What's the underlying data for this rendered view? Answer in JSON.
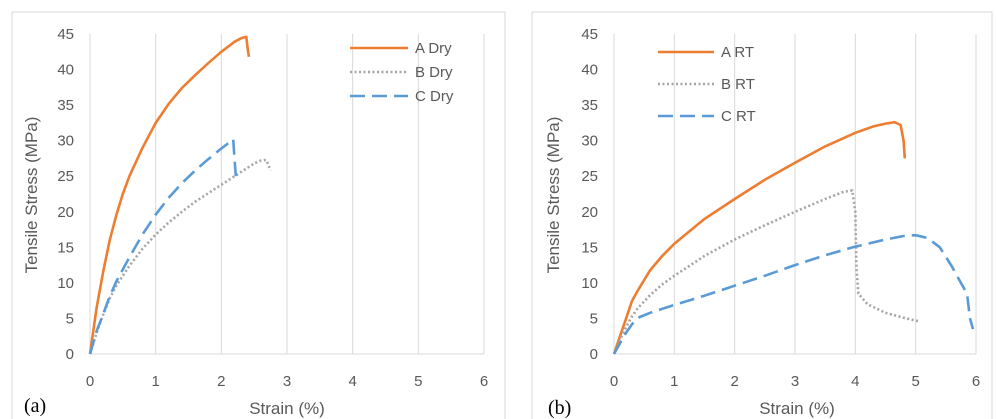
{
  "chart_data": [
    {
      "type": "line",
      "panel_label": "(a)",
      "xlabel": "Strain (%)",
      "ylabel": "Tensile Stress (MPa)",
      "xlim": [
        0,
        6
      ],
      "ylim": [
        0,
        45
      ],
      "xticks": [
        "0",
        "1",
        "2",
        "3",
        "4",
        "5",
        "6"
      ],
      "yticks": [
        "0",
        "5",
        "10",
        "15",
        "20",
        "25",
        "30",
        "35",
        "40",
        "45"
      ],
      "grid": "vertical",
      "legend_position": "top-right",
      "series": [
        {
          "name": "A Dry",
          "color": "#ED7D31",
          "dash": "solid",
          "x": [
            0,
            0.1,
            0.2,
            0.3,
            0.4,
            0.5,
            0.6,
            0.8,
            1.0,
            1.2,
            1.4,
            1.6,
            1.8,
            2.0,
            2.2,
            2.3,
            2.38,
            2.4,
            2.42
          ],
          "y": [
            0,
            6.5,
            11.5,
            16,
            19.5,
            22.5,
            25,
            29,
            32.5,
            35.2,
            37.4,
            39.2,
            40.9,
            42.5,
            43.9,
            44.4,
            44.6,
            43.0,
            41.8
          ]
        },
        {
          "name": "B Dry",
          "color": "#A5A5A5",
          "dash": "dotted",
          "x": [
            0,
            0.1,
            0.2,
            0.3,
            0.4,
            0.6,
            0.8,
            1.0,
            1.2,
            1.4,
            1.6,
            1.8,
            2.0,
            2.2,
            2.4,
            2.5,
            2.6,
            2.68,
            2.72,
            2.75
          ],
          "y": [
            0,
            3,
            5.5,
            7.8,
            9.6,
            12.4,
            14.8,
            16.8,
            18.5,
            20,
            21.4,
            22.6,
            23.8,
            25,
            26.2,
            26.8,
            27.2,
            27.3,
            26.5,
            25.8
          ]
        },
        {
          "name": "C Dry",
          "color": "#5B9BD5",
          "dash": "dashed",
          "x": [
            0,
            0.1,
            0.2,
            0.3,
            0.4,
            0.6,
            0.8,
            1.0,
            1.2,
            1.4,
            1.6,
            1.8,
            2.0,
            2.1,
            2.18,
            2.2,
            2.22
          ],
          "y": [
            0,
            3.2,
            5.6,
            8.1,
            10.2,
            13.6,
            16.8,
            19.6,
            22,
            24,
            25.8,
            27.4,
            28.9,
            29.6,
            30.2,
            27.5,
            25
          ]
        }
      ]
    },
    {
      "type": "line",
      "panel_label": "(b)",
      "xlabel": "Strain (%)",
      "ylabel": "Tensile Stress (MPa)",
      "xlim": [
        0,
        6
      ],
      "ylim": [
        0,
        45
      ],
      "xticks": [
        "0",
        "1",
        "2",
        "3",
        "4",
        "5",
        "6"
      ],
      "yticks": [
        "0",
        "5",
        "10",
        "15",
        "20",
        "25",
        "30",
        "35",
        "40",
        "45"
      ],
      "grid": "vertical",
      "legend_position": "top-left",
      "series": [
        {
          "name": "A RT",
          "color": "#ED7D31",
          "dash": "solid",
          "x": [
            0,
            0.1,
            0.2,
            0.3,
            0.4,
            0.6,
            0.8,
            1.0,
            1.5,
            2.0,
            2.5,
            3.0,
            3.5,
            4.0,
            4.3,
            4.5,
            4.65,
            4.75,
            4.8,
            4.82
          ],
          "y": [
            0,
            2.5,
            5,
            7.5,
            9,
            11.8,
            13.8,
            15.5,
            19,
            21.8,
            24.5,
            26.9,
            29.2,
            31.1,
            32,
            32.4,
            32.6,
            32.2,
            30,
            27.5
          ]
        },
        {
          "name": "B RT",
          "color": "#A5A5A5",
          "dash": "dotted",
          "x": [
            0,
            0.1,
            0.2,
            0.3,
            0.4,
            0.6,
            0.8,
            1.0,
            1.5,
            2.0,
            2.5,
            3.0,
            3.5,
            3.8,
            3.95,
            4.0,
            4.02,
            4.05,
            4.2,
            4.5,
            4.8,
            5.05
          ],
          "y": [
            0,
            2,
            3.8,
            5.3,
            6.5,
            8.3,
            9.8,
            11,
            13.8,
            16.1,
            18.1,
            20,
            21.8,
            22.8,
            23,
            20,
            12,
            8.5,
            7,
            5.8,
            5.1,
            4.6
          ]
        },
        {
          "name": "C RT",
          "color": "#5B9BD5",
          "dash": "dashed",
          "x": [
            0,
            0.1,
            0.2,
            0.3,
            0.4,
            0.6,
            1.0,
            1.5,
            2.0,
            2.5,
            3.0,
            3.5,
            4.0,
            4.5,
            4.8,
            5.0,
            5.2,
            5.4,
            5.6,
            5.75,
            5.85,
            5.9,
            5.95
          ],
          "y": [
            0,
            1.5,
            3,
            4.2,
            5.1,
            5.8,
            6.9,
            8.2,
            9.6,
            11,
            12.5,
            13.9,
            15.1,
            16.1,
            16.6,
            16.7,
            16.3,
            15,
            12.3,
            10,
            8.5,
            5,
            3.5
          ]
        }
      ]
    }
  ]
}
